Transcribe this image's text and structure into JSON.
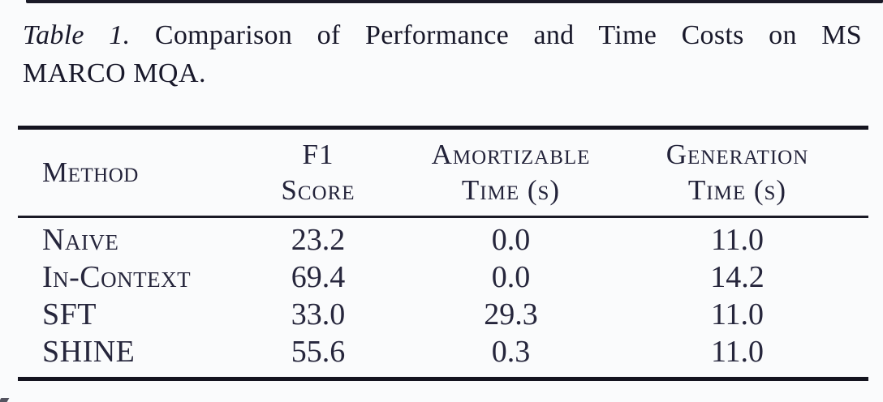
{
  "caption": {
    "label": "Table 1.",
    "line1_rest": "Comparison of Performance and Time Costs on MS",
    "line2": "MARCO MQA."
  },
  "table": {
    "headers": [
      {
        "line1": "Method",
        "line2": ""
      },
      {
        "line1": "F1",
        "line2": "Score"
      },
      {
        "line1": "Amortizable",
        "line2": "Time (s)"
      },
      {
        "line1": "Generation",
        "line2": "Time (s)"
      }
    ],
    "rows": [
      {
        "method": "Naive",
        "f1": "23.2",
        "amortizable": "0.0",
        "generation": "11.0"
      },
      {
        "method": "In-Context",
        "f1": "69.4",
        "amortizable": "0.0",
        "generation": "14.2"
      },
      {
        "method": "SFT",
        "f1": "33.0",
        "amortizable": "29.3",
        "generation": "11.0"
      },
      {
        "method": "SHINE",
        "f1": "55.6",
        "amortizable": "0.3",
        "generation": "11.0"
      }
    ]
  },
  "colors": {
    "ink": "#26263c",
    "rule": "#14141f",
    "background": "#fafbfc"
  }
}
